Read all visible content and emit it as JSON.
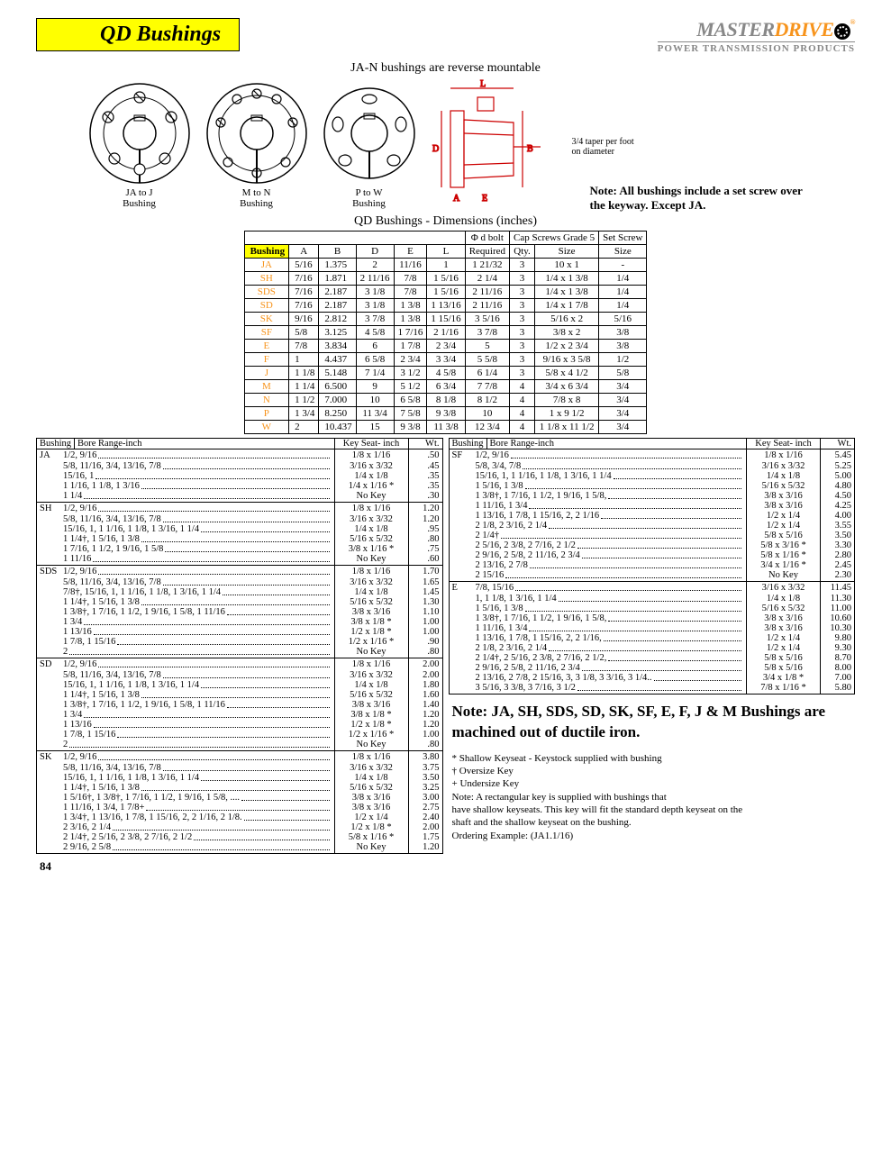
{
  "page": {
    "title": "QD Bushings",
    "number": "84"
  },
  "brand": {
    "line1a": "MASTER",
    "line1b": "DRIVE",
    "line2": "POWER TRANSMISSION PRODUCTS"
  },
  "captions": {
    "sub": "JA-N bushings are reverse mountable",
    "dim_title": "QD Bushings - Dimensions (inches)",
    "taper": "3/4 taper per foot\non diameter",
    "note_set_screw": "Note: All bushings include a set screw over the keyway.  Except JA."
  },
  "diagrams": {
    "labels": [
      "JA to J\nBushing",
      "M to N\nBushing",
      "P to W\nBushing",
      ""
    ]
  },
  "dim_table": {
    "headers_top": [
      "",
      "",
      "",
      "",
      "",
      "",
      "Φ d bolt",
      "Cap Screws Grade 5",
      "Set Screw"
    ],
    "headers_bot": [
      "Bushing",
      "A",
      "B",
      "D",
      "E",
      "L",
      "Required",
      "Qty.",
      "Size",
      "Size"
    ],
    "rows": [
      [
        "JA",
        "5/16",
        "1.375",
        "2",
        "11/16",
        "1",
        "1 21/32",
        "3",
        "10 x 1",
        "-"
      ],
      [
        "SH",
        "7/16",
        "1.871",
        "2 11/16",
        "7/8",
        "1 5/16",
        "2 1/4",
        "3",
        "1/4 x 1 3/8",
        "1/4"
      ],
      [
        "SDS",
        "7/16",
        "2.187",
        "3 1/8",
        "7/8",
        "1 5/16",
        "2 11/16",
        "3",
        "1/4 x 1 3/8",
        "1/4"
      ],
      [
        "SD",
        "7/16",
        "2.187",
        "3 1/8",
        "1 3/8",
        "1 13/16",
        "2 11/16",
        "3",
        "1/4 x 1 7/8",
        "1/4"
      ],
      [
        "SK",
        "9/16",
        "2.812",
        "3 7/8",
        "1 3/8",
        "1 15/16",
        "3 5/16",
        "3",
        "5/16 x 2",
        "5/16"
      ],
      [
        "SF",
        "5/8",
        "3.125",
        "4 5/8",
        "1 7/16",
        "2 1/16",
        "3 7/8",
        "3",
        "3/8 x 2",
        "3/8"
      ],
      [
        "E",
        "7/8",
        "3.834",
        "6",
        "1 7/8",
        "2 3/4",
        "5",
        "3",
        "1/2 x 2 3/4",
        "3/8"
      ],
      [
        "F",
        "1",
        "4.437",
        "6 5/8",
        "2 3/4",
        "3 3/4",
        "5 5/8",
        "3",
        "9/16 x 3 5/8",
        "1/2"
      ],
      [
        "J",
        "1 1/8",
        "5.148",
        "7 1/4",
        "3 1/2",
        "4 5/8",
        "6 1/4",
        "3",
        "5/8 x 4 1/2",
        "5/8"
      ],
      [
        "M",
        "1 1/4",
        "6.500",
        "9",
        "5 1/2",
        "6 3/4",
        "7 7/8",
        "4",
        "3/4 x 6 3/4",
        "3/4"
      ],
      [
        "N",
        "1 1/2",
        "7.000",
        "10",
        "6 5/8",
        "8 1/8",
        "8 1/2",
        "4",
        "7/8 x 8",
        "3/4"
      ],
      [
        "P",
        "1 3/4",
        "8.250",
        "11 3/4",
        "7 5/8",
        "9 3/8",
        "10",
        "4",
        "1 x 9 1/2",
        "3/4"
      ],
      [
        "W",
        "2",
        "10.437",
        "15",
        "9 3/8",
        "11 3/8",
        "12 3/4",
        "4",
        "1 1/8 x 11 1/2",
        "3/4"
      ]
    ]
  },
  "bore_headers": [
    "Bushing",
    "Bore Range-inch",
    "Key Seat- inch",
    "Wt."
  ],
  "bore_left": [
    {
      "bush": "JA",
      "rows": [
        {
          "b": "1/2, 9/16",
          "k": "1/8  x  1/16",
          "w": ".50"
        },
        {
          "b": "5/8, 11/16, 3/4, 13/16, 7/8",
          "k": "3/16  x  3/32",
          "w": ".45"
        },
        {
          "b": "15/16, 1",
          "k": "1/4  x  1/8",
          "w": ".35"
        },
        {
          "b": "1 1/16, 1 1/8, 1 3/16",
          "k": "1/4  x  1/16 *",
          "w": ".35"
        },
        {
          "b": "1 1/4",
          "k": "No Key",
          "w": ".30"
        }
      ]
    },
    {
      "bush": "SH",
      "rows": [
        {
          "b": "1/2, 9/16",
          "k": "1/8  x  1/16",
          "w": "1.20"
        },
        {
          "b": "5/8, 11/16, 3/4, 13/16, 7/8",
          "k": "3/16  x  3/32",
          "w": "1.20"
        },
        {
          "b": "15/16, 1, 1 1/16, 1 1/8, 1 3/16, 1 1/4",
          "k": "1/4  x  1/8",
          "w": ".95"
        },
        {
          "b": "1 1/4†, 1 5/16, 1 3/8",
          "k": "5/16  x  5/32",
          "w": ".80"
        },
        {
          "b": "1 7/16, 1 1/2, 1 9/16, 1 5/8",
          "k": "3/8  x  1/16 *",
          "w": ".75"
        },
        {
          "b": "1 11/16",
          "k": "No Key",
          "w": ".60"
        }
      ]
    },
    {
      "bush": "SDS",
      "rows": [
        {
          "b": "1/2, 9/16",
          "k": "1/8  x  1/16",
          "w": "1.70"
        },
        {
          "b": "5/8, 11/16, 3/4, 13/16, 7/8",
          "k": "3/16  x  3/32",
          "w": "1.65"
        },
        {
          "b": "7/8†, 15/16, 1, 1 1/16, 1 1/8, 1 3/16, 1 1/4",
          "k": "1/4  x  1/8",
          "w": "1.45"
        },
        {
          "b": "1 1/4†, 1 5/16, 1 3/8",
          "k": "5/16  x  5/32",
          "w": "1.30"
        },
        {
          "b": "1 3/8†, 1 7/16, 1 1/2, 1 9/16, 1 5/8, 1 11/16",
          "k": "3/8  x  3/16",
          "w": "1.10"
        },
        {
          "b": "1 3/4",
          "k": "3/8  x  1/8  *",
          "w": "1.00"
        },
        {
          "b": "1 13/16",
          "k": "1/2  x  1/8  *",
          "w": "1.00"
        },
        {
          "b": "1 7/8, 1 15/16",
          "k": "1/2  x  1/16 *",
          "w": ".90"
        },
        {
          "b": "2",
          "k": "No Key",
          "w": ".80"
        }
      ]
    },
    {
      "bush": "SD",
      "rows": [
        {
          "b": "1/2, 9/16",
          "k": "1/8  x  1/16",
          "w": "2.00"
        },
        {
          "b": "5/8, 11/16, 3/4, 13/16, 7/8",
          "k": "3/16  x  3/32",
          "w": "2.00"
        },
        {
          "b": "15/16, 1, 1 1/16, 1 1/8, 1 3/16, 1 1/4",
          "k": "1/4  x  1/8",
          "w": "1.80"
        },
        {
          "b": "1 1/4†, 1 5/16, 1 3/8",
          "k": "5/16  x  5/32",
          "w": "1.60"
        },
        {
          "b": "1 3/8†, 1 7/16, 1 1/2, 1 9/16, 1 5/8, 1 11/16",
          "k": "3/8  x  3/16",
          "w": "1.40"
        },
        {
          "b": "1 3/4",
          "k": "3/8  x  1/8  *",
          "w": "1.20"
        },
        {
          "b": "1 13/16",
          "k": "1/2  x  1/8  *",
          "w": "1.20"
        },
        {
          "b": "1 7/8, 1 15/16",
          "k": "1/2  x  1/16 *",
          "w": "1.00"
        },
        {
          "b": "2",
          "k": "No Key",
          "w": ".80"
        }
      ]
    },
    {
      "bush": "SK",
      "rows": [
        {
          "b": "1/2, 9/16",
          "k": "1/8  x  1/16",
          "w": "3.80"
        },
        {
          "b": "5/8, 11/16, 3/4, 13/16, 7/8",
          "k": "3/16  x  3/32",
          "w": "3.75"
        },
        {
          "b": "15/16, 1, 1 1/16, 1 1/8, 1 3/16, 1 1/4",
          "k": "1/4  x  1/8",
          "w": "3.50"
        },
        {
          "b": "1 1/4†, 1 5/16, 1 3/8",
          "k": "5/16  x  5/32",
          "w": "3.25"
        },
        {
          "b": "1 5/16†, 1 3/8†, 1 7/16, 1 1/2, 1 9/16, 1 5/8, ....",
          "k": "3/8  x  3/16",
          "w": "3.00"
        },
        {
          "b": "1 11/16, 1 3/4, 1 7/8+",
          "k": "3/8  x  3/16",
          "w": "2.75"
        },
        {
          "b": "1 3/4†, 1 13/16, 1 7/8, 1 15/16, 2, 2 1/16, 2 1/8.",
          "k": "1/2  x  1/4",
          "w": "2.40"
        },
        {
          "b": "2 3/16, 2 1/4",
          "k": "1/2  x  1/8  *",
          "w": "2.00"
        },
        {
          "b": "2 1/4†, 2 5/16, 2 3/8, 2 7/16, 2 1/2",
          "k": "5/8  x  1/16 *",
          "w": "1.75"
        },
        {
          "b": "2 9/16, 2 5/8",
          "k": "No Key",
          "w": "1.20"
        }
      ]
    }
  ],
  "bore_right": [
    {
      "bush": "SF",
      "rows": [
        {
          "b": "1/2, 9/16",
          "k": "1/8  x  1/16",
          "w": "5.45"
        },
        {
          "b": "5/8, 3/4, 7/8",
          "k": "3/16  x  3/32",
          "w": "5.25"
        },
        {
          "b": "15/16, 1, 1 1/16, 1 1/8, 1 3/16, 1 1/4",
          "k": "1/4  x  1/8",
          "w": "5.00"
        },
        {
          "b": "1 5/16, 1 3/8",
          "k": "5/16  x  5/32",
          "w": "4.80"
        },
        {
          "b": "1 3/8†, 1 7/16, 1 1/2, 1 9/16, 1 5/8,",
          "k": "3/8  x  3/16",
          "w": "4.50"
        },
        {
          "b": "1 11/16, 1 3/4",
          "k": "3/8  x  3/16",
          "w": "4.25"
        },
        {
          "b": "1 13/16, 1 7/8, 1 15/16, 2, 2 1/16",
          "k": "1/2  x  1/4",
          "w": "4.00"
        },
        {
          "b": "2 1/8, 2 3/16, 2 1/4",
          "k": "1/2  x  1/4",
          "w": "3.55"
        },
        {
          "b": "2 1/4†",
          "k": "5/8  x  5/16",
          "w": "3.50"
        },
        {
          "b": "2 5/16, 2 3/8, 2 7/16, 2 1/2",
          "k": "5/8  x  3/16 *",
          "w": "3.30"
        },
        {
          "b": "2 9/16, 2 5/8, 2 11/16, 2 3/4",
          "k": "5/8  x  1/16 *",
          "w": "2.80"
        },
        {
          "b": "2 13/16, 2 7/8",
          "k": "3/4  x  1/16 *",
          "w": "2.45"
        },
        {
          "b": "2 15/16",
          "k": "No Key",
          "w": "2.30"
        }
      ]
    },
    {
      "bush": "E",
      "rows": [
        {
          "b": "7/8, 15/16",
          "k": "3/16  x  3/32",
          "w": "11.45"
        },
        {
          "b": "1, 1 1/8, 1 3/16, 1 1/4",
          "k": "1/4  x  1/8",
          "w": "11.30"
        },
        {
          "b": "1 5/16, 1 3/8",
          "k": "5/16  x  5/32",
          "w": "11.00"
        },
        {
          "b": "1 3/8†, 1 7/16, 1 1/2, 1 9/16, 1 5/8,",
          "k": "3/8  x  3/16",
          "w": "10.60"
        },
        {
          "b": "1 11/16, 1 3/4",
          "k": "3/8  x  3/16",
          "w": "10.30"
        },
        {
          "b": "1 13/16, 1 7/8, 1 15/16, 2, 2 1/16,",
          "k": "1/2  x  1/4",
          "w": "9.80"
        },
        {
          "b": "2 1/8, 2 3/16, 2 1/4",
          "k": "1/2  x  1/4",
          "w": "9.30"
        },
        {
          "b": "2 1/4†, 2 5/16, 2 3/8, 2 7/16, 2 1/2,",
          "k": "5/8  x  5/16",
          "w": "8.70"
        },
        {
          "b": "2 9/16, 2 5/8, 2 11/16, 2 3/4",
          "k": "5/8  x  5/16",
          "w": "8.00"
        },
        {
          "b": "2 13/16, 2 7/8, 2 15/16, 3, 3 1/8, 3 3/16, 3 1/4..",
          "k": "3/4  x  1/8  *",
          "w": "7.00"
        },
        {
          "b": "3 5/16, 3 3/8, 3 7/16, 3 1/2",
          "k": "7/8  x  1/16 *",
          "w": "5.80"
        }
      ]
    }
  ],
  "note_block": "Note: JA, SH, SDS, SD, SK, SF, E, F, J & M Bushings are machined out of ductile iron.",
  "footnotes": [
    "*  Shallow Keyseat - Keystock supplied with bushing",
    "†  Oversize Key",
    "+ Undersize Key",
    "Note:      A rectangular key is supplied with bushings that",
    "have shallow keyseats.  This key will fit the standard depth keyseat on the",
    "shaft and the shallow keyseat on  the bushing.",
    "Ordering Example:    (JA1.1/16)"
  ]
}
